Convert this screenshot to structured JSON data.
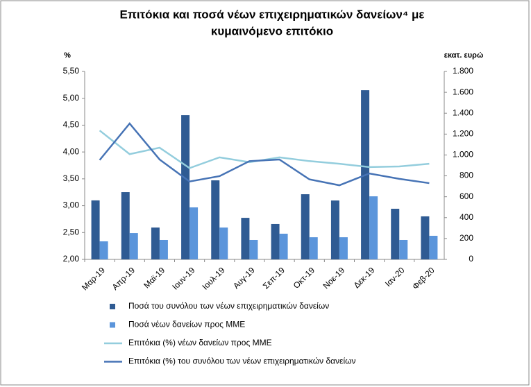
{
  "chart_data": {
    "type": "bar",
    "title": [
      "Επιτόκια και ποσά νέων επιχειρηματικών δανείων⁴ με",
      "κυμαινόμενο επιτόκιο"
    ],
    "y_label": "%",
    "y2_label": "εκατ. ευρώ",
    "categories": [
      "Μαρ-19",
      "Απρ-19",
      "Μαϊ-19",
      "Ιουν-19",
      "Ιουλ-19",
      "Αυγ-19",
      "Σεπ-19",
      "Οκτ-19",
      "Νοε-19",
      "Δεκ-19",
      "Ιαν-20",
      "Φεβ-20"
    ],
    "ylim": [
      2,
      5.5
    ],
    "yticks": [
      {
        "value": 2,
        "label": "2,00"
      },
      {
        "value": 2.5,
        "label": "2,50"
      },
      {
        "value": 3,
        "label": "3,00"
      },
      {
        "value": 3.5,
        "label": "3,50"
      },
      {
        "value": 4,
        "label": "4,00"
      },
      {
        "value": 4.5,
        "label": "4,50"
      },
      {
        "value": 5,
        "label": "5,00"
      },
      {
        "value": 5.5,
        "label": "5,50"
      }
    ],
    "y2lim": [
      0,
      1800
    ],
    "y2ticks": [
      0,
      200,
      400,
      600,
      800,
      {
        "value": 1000,
        "label": "1.000"
      },
      {
        "value": 1200,
        "label": "1.200"
      },
      {
        "value": 1400,
        "label": "1.400"
      },
      {
        "value": 1600,
        "label": "1.600"
      },
      {
        "value": 1800,
        "label": "1.800"
      }
    ],
    "series": [
      {
        "name": "Ποσά του συνόλου των νέων επιχειρηματικών δανείων",
        "type": "bar",
        "axis": "y2",
        "color": "#2f5b93",
        "values": [
          565,
          644,
          305,
          1381,
          757,
          398,
          339,
          624,
          564,
          1620,
          485,
          412
        ]
      },
      {
        "name": "Ποσά νέων δανείων προς ΜΜΕ",
        "type": "bar",
        "axis": "y2",
        "color": "#5b95db",
        "values": [
          173,
          252,
          186,
          498,
          305,
          186,
          246,
          212,
          212,
          604,
          186,
          226
        ]
      },
      {
        "name": "Επιτόκια (%) νέων δανείων προς ΜΜΕ",
        "type": "line",
        "color": "#93cddd",
        "values": [
          4.4,
          3.96,
          4.08,
          3.7,
          3.9,
          3.81,
          3.9,
          3.83,
          3.78,
          3.72,
          3.73,
          3.78
        ]
      },
      {
        "name": "Επιτόκια (%) του συνόλου των νέων επιχειρηματικών δανείων",
        "type": "line",
        "color": "#4673b5",
        "values": [
          3.85,
          4.53,
          3.86,
          3.45,
          3.55,
          3.83,
          3.86,
          3.49,
          3.38,
          3.6,
          3.5,
          3.42
        ]
      }
    ]
  }
}
